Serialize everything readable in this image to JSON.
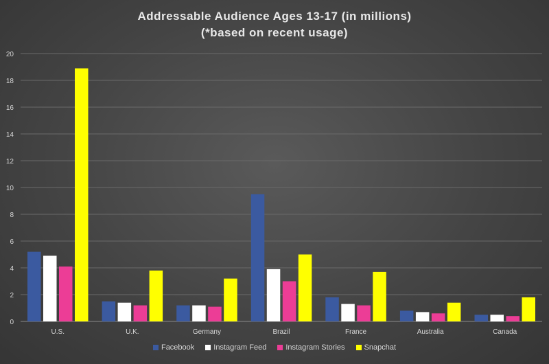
{
  "chart_data": {
    "type": "bar",
    "title": "Addressable Audience Ages 13-17 (in millions)",
    "subtitle": "(*based on recent usage)",
    "categories": [
      "U.S.",
      "U.K.",
      "Germany",
      "Brazil",
      "France",
      "Australia",
      "Canada"
    ],
    "series": [
      {
        "name": "Facebook",
        "color": "#3b5aa0",
        "values": [
          5.2,
          1.5,
          1.2,
          9.5,
          1.8,
          0.8,
          0.5
        ]
      },
      {
        "name": "Instagram Feed",
        "color": "#ffffff",
        "values": [
          4.9,
          1.4,
          1.2,
          3.9,
          1.3,
          0.7,
          0.5
        ]
      },
      {
        "name": "Instagram Stories",
        "color": "#ec3d96",
        "values": [
          4.1,
          1.2,
          1.1,
          3.0,
          1.2,
          0.6,
          0.4
        ]
      },
      {
        "name": "Snapchat",
        "color": "#ffff00",
        "values": [
          18.9,
          3.8,
          3.2,
          5.0,
          3.7,
          1.4,
          1.8
        ]
      }
    ],
    "ylim": [
      0,
      20
    ],
    "yticks": [
      0,
      2,
      4,
      6,
      8,
      10,
      12,
      14,
      16,
      18,
      20
    ],
    "grid": true,
    "legend_position": "bottom"
  }
}
